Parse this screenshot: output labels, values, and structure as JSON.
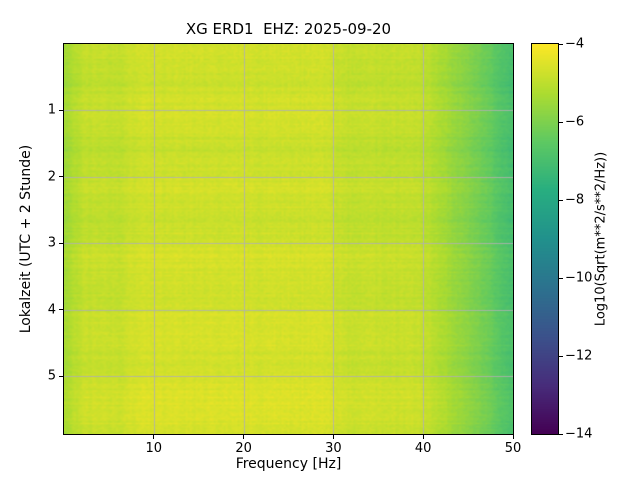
{
  "chart_data": {
    "type": "heatmap",
    "title": "XG ERD1  EHZ: 2025-09-20",
    "xlabel": "Frequency [Hz]",
    "ylabel": "Lokalzeit (UTC + 2 Stunde)",
    "x_range": [
      0,
      50
    ],
    "x_ticks": [
      10,
      20,
      30,
      40,
      50
    ],
    "y_range": [
      0,
      5.87
    ],
    "y_ticks": [
      1,
      2,
      3,
      4,
      5
    ],
    "grid": true,
    "colorbar": {
      "label": "Log10(Sqrt(m**2/s**2/Hz))",
      "ticks": [
        -4,
        -6,
        -8,
        -10,
        -12,
        -14
      ],
      "range": [
        -14,
        -4
      ],
      "colormap": "viridis"
    },
    "freq_bin_centers_hz": [
      1,
      3,
      5,
      7,
      9,
      11,
      13,
      15,
      17,
      19,
      21,
      23,
      25,
      27,
      29,
      31,
      33,
      35,
      37,
      39,
      41,
      43,
      45,
      47,
      49
    ],
    "time_bin_centers_h": [
      0.25,
      0.75,
      1.25,
      1.75,
      2.25,
      2.75,
      3.25,
      3.75,
      4.25,
      4.75,
      5.25,
      5.75
    ],
    "values_log10": [
      [
        -5.3,
        -4.8,
        -4.8,
        -4.8,
        -4.6,
        -4.6,
        -4.6,
        -4.6,
        -4.6,
        -4.6,
        -4.6,
        -4.6,
        -4.6,
        -4.6,
        -4.6,
        -4.8,
        -4.8,
        -4.8,
        -4.8,
        -4.8,
        -5.1,
        -5.5,
        -5.9,
        -6.4,
        -6.9
      ],
      [
        -5.5,
        -5.0,
        -5.0,
        -5.0,
        -4.8,
        -4.8,
        -4.8,
        -4.8,
        -4.8,
        -4.8,
        -4.8,
        -4.8,
        -4.8,
        -4.8,
        -4.8,
        -5.0,
        -5.0,
        -5.0,
        -5.0,
        -5.0,
        -5.3,
        -5.7,
        -6.1,
        -6.6,
        -7.1
      ],
      [
        -5.3,
        -4.8,
        -4.8,
        -4.8,
        -4.6,
        -4.6,
        -4.6,
        -4.6,
        -4.6,
        -4.6,
        -4.6,
        -4.6,
        -4.6,
        -4.6,
        -4.6,
        -4.8,
        -4.8,
        -4.8,
        -4.8,
        -4.8,
        -5.1,
        -5.5,
        -5.9,
        -6.4,
        -6.9
      ],
      [
        -5.55,
        -5.05,
        -5.05,
        -5.05,
        -4.85,
        -4.85,
        -4.85,
        -4.85,
        -4.85,
        -4.85,
        -4.85,
        -4.85,
        -4.85,
        -4.85,
        -4.85,
        -5.05,
        -5.05,
        -5.05,
        -5.05,
        -5.05,
        -5.35,
        -5.75,
        -6.15,
        -6.65,
        -7.15
      ],
      [
        -5.35,
        -4.85,
        -4.85,
        -4.85,
        -4.65,
        -4.65,
        -4.65,
        -4.65,
        -4.65,
        -4.65,
        -4.65,
        -4.65,
        -4.65,
        -4.65,
        -4.65,
        -4.85,
        -4.85,
        -4.85,
        -4.85,
        -4.85,
        -5.15,
        -5.55,
        -5.95,
        -6.45,
        -6.95
      ],
      [
        -5.5,
        -5.0,
        -5.0,
        -5.0,
        -4.8,
        -4.8,
        -4.8,
        -4.8,
        -4.8,
        -4.8,
        -4.8,
        -4.8,
        -4.8,
        -4.8,
        -4.8,
        -5.0,
        -5.0,
        -5.0,
        -5.0,
        -5.0,
        -5.3,
        -5.7,
        -6.1,
        -6.6,
        -7.1
      ],
      [
        -5.3,
        -4.8,
        -4.8,
        -4.8,
        -4.6,
        -4.6,
        -4.6,
        -4.6,
        -4.6,
        -4.6,
        -4.6,
        -4.6,
        -4.6,
        -4.6,
        -4.6,
        -4.8,
        -4.8,
        -4.8,
        -4.8,
        -4.8,
        -5.1,
        -5.5,
        -5.9,
        -6.4,
        -6.9
      ],
      [
        -5.45,
        -4.95,
        -4.95,
        -4.95,
        -4.75,
        -4.75,
        -4.75,
        -4.75,
        -4.75,
        -4.75,
        -4.75,
        -4.75,
        -4.75,
        -4.75,
        -4.75,
        -4.95,
        -4.95,
        -4.95,
        -4.95,
        -4.95,
        -5.25,
        -5.65,
        -6.05,
        -6.55,
        -7.05
      ],
      [
        -5.25,
        -4.75,
        -4.75,
        -4.75,
        -4.55,
        -4.55,
        -4.55,
        -4.55,
        -4.55,
        -4.55,
        -4.55,
        -4.55,
        -4.55,
        -4.55,
        -4.55,
        -4.75,
        -4.75,
        -4.75,
        -4.75,
        -4.75,
        -5.05,
        -5.45,
        -5.85,
        -6.35,
        -6.85
      ],
      [
        -5.4,
        -4.9,
        -4.9,
        -4.9,
        -4.7,
        -4.7,
        -4.7,
        -4.7,
        -4.7,
        -4.7,
        -4.7,
        -4.7,
        -4.7,
        -4.7,
        -4.7,
        -4.9,
        -4.9,
        -4.9,
        -4.9,
        -4.9,
        -5.2,
        -5.6,
        -6.0,
        -6.5,
        -7.0
      ],
      [
        -5.2,
        -4.7,
        -4.7,
        -4.7,
        -4.5,
        -4.5,
        -4.5,
        -4.5,
        -4.5,
        -4.5,
        -4.5,
        -4.5,
        -4.5,
        -4.5,
        -4.5,
        -4.7,
        -4.7,
        -4.7,
        -4.7,
        -4.7,
        -5.0,
        -5.4,
        -5.8,
        -6.3,
        -6.8
      ],
      [
        -5.3,
        -4.8,
        -4.8,
        -4.8,
        -4.6,
        -4.6,
        -4.6,
        -4.6,
        -4.6,
        -4.6,
        -4.6,
        -4.6,
        -4.6,
        -4.6,
        -4.6,
        -4.8,
        -4.8,
        -4.8,
        -4.8,
        -4.8,
        -5.1,
        -5.5,
        -5.9,
        -6.4,
        -6.9
      ]
    ]
  },
  "colors": {
    "background": "#ffffff",
    "frame": "#000000",
    "grid": "#b0b0b0",
    "viridis_stops": [
      "#440154",
      "#472d7b",
      "#3b528b",
      "#2c728e",
      "#21918c",
      "#28ae80",
      "#5ec962",
      "#addc30",
      "#fde725"
    ]
  }
}
